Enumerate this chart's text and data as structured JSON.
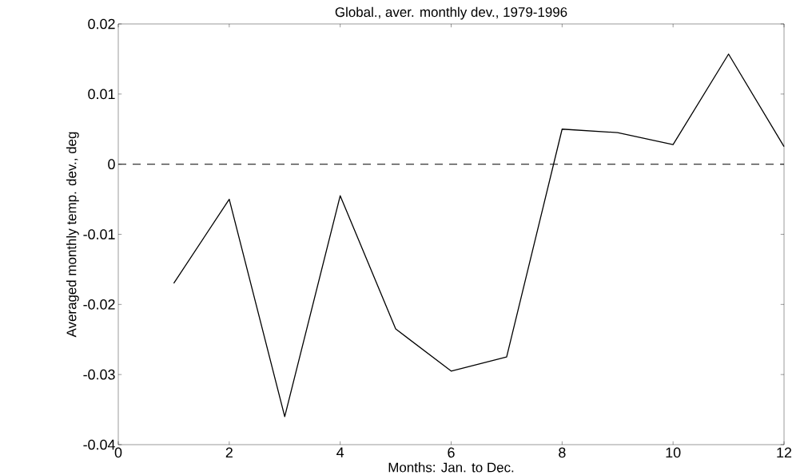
{
  "chart_data": {
    "type": "line",
    "title": "Global., aver. monthly dev., 1979-1996",
    "xlabel": "Months: Jan. to Dec.",
    "ylabel": "Averaged monthly temp. dev., deg",
    "x": [
      1,
      2,
      3,
      4,
      5,
      6,
      7,
      8,
      9,
      10,
      11,
      12
    ],
    "series": [
      {
        "color": "#000000",
        "values": [
          -0.017,
          -0.005,
          -0.036,
          -0.0045,
          -0.0235,
          -0.0295,
          -0.0275,
          0.005,
          0.0045,
          0.0028,
          0.0157,
          0.0025
        ]
      }
    ],
    "xlim": [
      0,
      12
    ],
    "ylim": [
      -0.04,
      0.02
    ],
    "xticks": [
      0,
      2,
      4,
      6,
      8,
      10,
      12
    ],
    "yticks": [
      -0.04,
      -0.03,
      -0.02,
      -0.01,
      0,
      0.01,
      0.02
    ],
    "ref_lines": [
      {
        "axis": "y",
        "value": 0,
        "line_style": "dashed"
      }
    ],
    "marker": "none",
    "line_style": "solid",
    "grid": false
  }
}
